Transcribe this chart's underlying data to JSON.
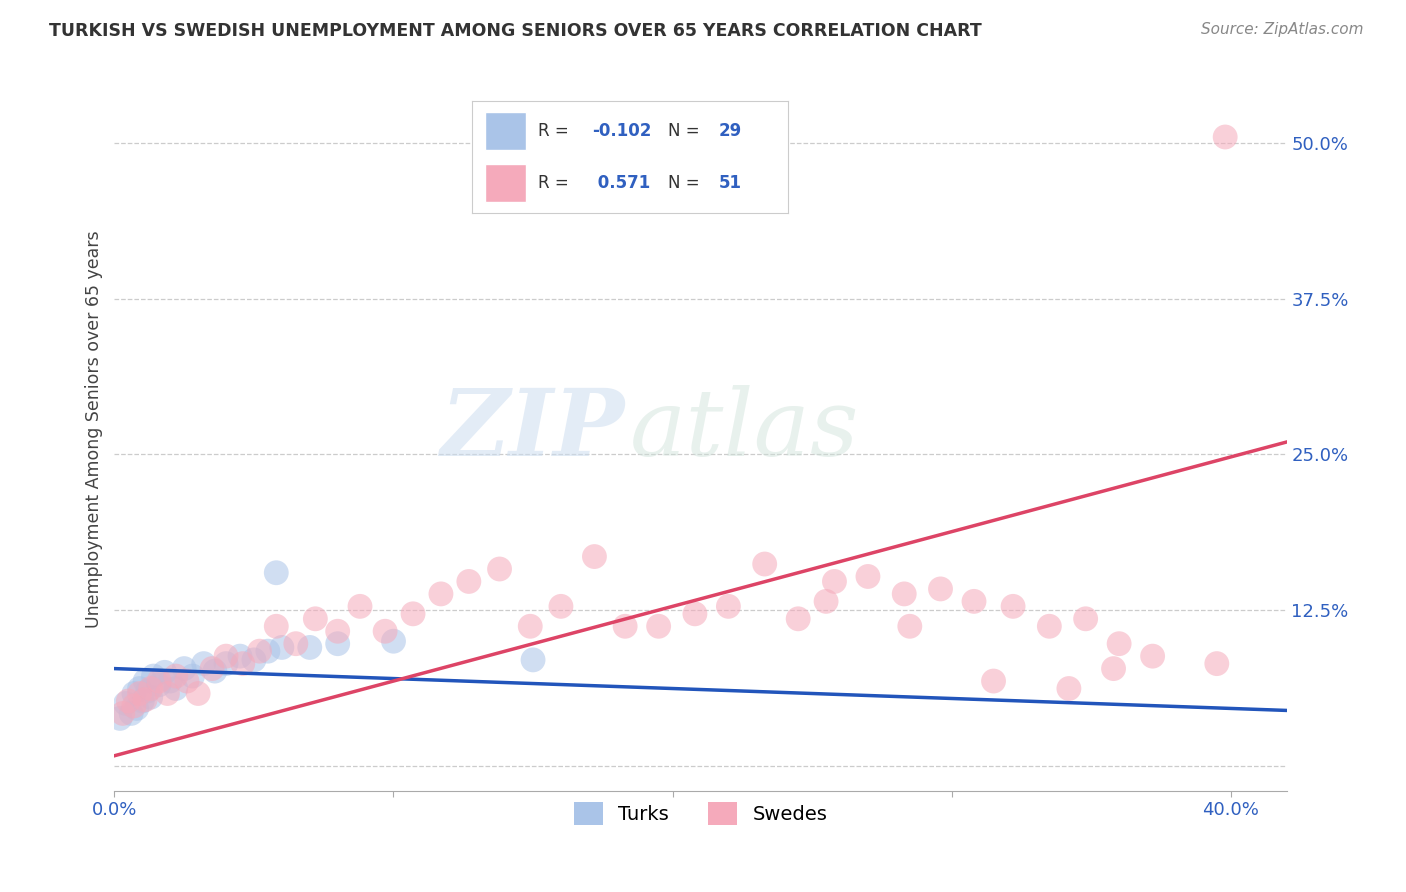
{
  "title": "TURKISH VS SWEDISH UNEMPLOYMENT AMONG SENIORS OVER 65 YEARS CORRELATION CHART",
  "source": "Source: ZipAtlas.com",
  "ylabel": "Unemployment Among Seniors over 65 years",
  "xlim": [
    0.0,
    0.42
  ],
  "ylim": [
    -0.02,
    0.56
  ],
  "ytick_vals": [
    0.0,
    0.125,
    0.25,
    0.375,
    0.5
  ],
  "ytick_labels_right": [
    "",
    "12.5%",
    "25.0%",
    "37.5%",
    "50.0%"
  ],
  "xtick_vals": [
    0.0,
    0.1,
    0.2,
    0.3,
    0.4
  ],
  "xtick_labels": [
    "0.0%",
    "",
    "",
    "",
    "40.0%"
  ],
  "turk_color": "#aac4e8",
  "swede_color": "#f5aabb",
  "turk_line_color": "#2255bb",
  "swede_line_color": "#dd4466",
  "watermark_zip": "ZIP",
  "watermark_atlas": "atlas",
  "legend_r_turk": "-0.102",
  "legend_n_turk": "29",
  "legend_r_swede": "0.571",
  "legend_n_swede": "51",
  "turks_x": [
    0.002,
    0.004,
    0.006,
    0.007,
    0.008,
    0.009,
    0.01,
    0.011,
    0.012,
    0.013,
    0.014,
    0.016,
    0.018,
    0.02,
    0.022,
    0.025,
    0.028,
    0.032,
    0.036,
    0.04,
    0.045,
    0.05,
    0.055,
    0.06,
    0.07,
    0.08,
    0.1,
    0.15,
    0.058
  ],
  "turks_y": [
    0.038,
    0.05,
    0.042,
    0.058,
    0.046,
    0.062,
    0.052,
    0.068,
    0.06,
    0.055,
    0.072,
    0.065,
    0.075,
    0.068,
    0.062,
    0.078,
    0.072,
    0.082,
    0.076,
    0.082,
    0.088,
    0.085,
    0.092,
    0.095,
    0.095,
    0.098,
    0.1,
    0.085,
    0.155
  ],
  "swedes_x": [
    0.003,
    0.005,
    0.007,
    0.009,
    0.011,
    0.013,
    0.016,
    0.019,
    0.022,
    0.026,
    0.03,
    0.035,
    0.04,
    0.046,
    0.052,
    0.058,
    0.065,
    0.072,
    0.08,
    0.088,
    0.097,
    0.107,
    0.117,
    0.127,
    0.138,
    0.149,
    0.16,
    0.172,
    0.183,
    0.195,
    0.208,
    0.22,
    0.233,
    0.245,
    0.258,
    0.27,
    0.283,
    0.296,
    0.308,
    0.322,
    0.335,
    0.348,
    0.36,
    0.372,
    0.358,
    0.342,
    0.315,
    0.285,
    0.255,
    0.395,
    0.398
  ],
  "swedes_y": [
    0.042,
    0.052,
    0.048,
    0.058,
    0.053,
    0.062,
    0.068,
    0.058,
    0.072,
    0.068,
    0.058,
    0.078,
    0.088,
    0.082,
    0.092,
    0.112,
    0.098,
    0.118,
    0.108,
    0.128,
    0.108,
    0.122,
    0.138,
    0.148,
    0.158,
    0.112,
    0.128,
    0.168,
    0.112,
    0.112,
    0.122,
    0.128,
    0.162,
    0.118,
    0.148,
    0.152,
    0.138,
    0.142,
    0.132,
    0.128,
    0.112,
    0.118,
    0.098,
    0.088,
    0.078,
    0.062,
    0.068,
    0.112,
    0.132,
    0.082,
    0.505
  ]
}
